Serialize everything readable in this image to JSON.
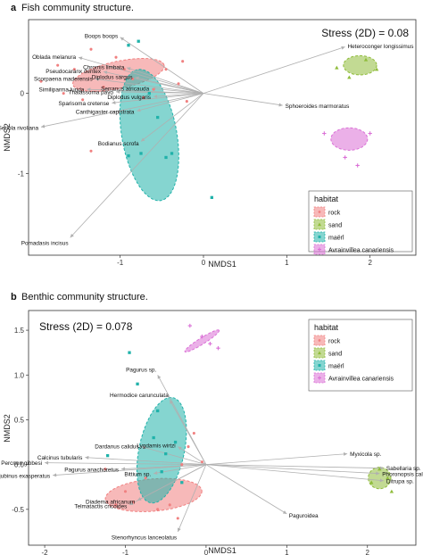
{
  "colors": {
    "rock": "#f08080",
    "sand": "#8fbc3a",
    "maerl": "#20b2aa",
    "avrainvillea": "#da70d6",
    "vector": "#b0b0b0"
  },
  "chart_data": [
    {
      "type": "scatter",
      "panel_letter": "a",
      "title": "Fish community structure.",
      "xlabel": "NMDS1",
      "ylabel": "NMDS2",
      "xlim": [
        -2.1,
        2.55
      ],
      "ylim": [
        -2.02,
        0.92
      ],
      "x_ticks": [
        -1,
        0,
        1,
        2
      ],
      "y_ticks": [
        -1,
        0
      ],
      "stress": "Stress (2D) = 0.08",
      "legend": {
        "title": "habitat",
        "position": "bottom-right",
        "entries": [
          {
            "label": "rock",
            "key": "rock",
            "marker": "circle"
          },
          {
            "label": "sand",
            "key": "sand",
            "marker": "triangle"
          },
          {
            "label": "maërl",
            "key": "maerl",
            "marker": "square"
          },
          {
            "label": "Avrainvillea canariensis",
            "key": "avrainvillea",
            "marker": "plus"
          }
        ]
      },
      "ellipses": [
        {
          "group": "rock",
          "cx": -1.02,
          "cy": 0.23,
          "rx": 0.56,
          "ry": 0.17,
          "angle": -12
        },
        {
          "group": "maerl",
          "cx": -0.65,
          "cy": -0.52,
          "rx": 0.33,
          "ry": 0.83,
          "angle": -10
        },
        {
          "group": "sand",
          "cx": 1.88,
          "cy": 0.35,
          "rx": 0.2,
          "ry": 0.12,
          "angle": 0
        },
        {
          "group": "avrainvillea",
          "cx": 1.75,
          "cy": -0.57,
          "rx": 0.22,
          "ry": 0.14,
          "angle": 0
        }
      ],
      "points": {
        "rock": [
          [
            -1.95,
            0.15
          ],
          [
            -1.75,
            0.35
          ],
          [
            -1.68,
            0.0
          ],
          [
            -1.55,
            0.3
          ],
          [
            -1.45,
            -0.08
          ],
          [
            -1.35,
            0.55
          ],
          [
            -1.2,
            0.08
          ],
          [
            -1.05,
            0.45
          ],
          [
            -0.95,
            0.3
          ],
          [
            -0.85,
            0.18
          ],
          [
            -0.72,
            -0.05
          ],
          [
            -0.6,
            0.05
          ],
          [
            -0.45,
            0.3
          ],
          [
            -0.3,
            0.12
          ],
          [
            -0.25,
            0.4
          ],
          [
            -1.35,
            -0.72
          ],
          [
            -0.2,
            -0.1
          ]
        ],
        "sand": [
          [
            1.6,
            0.32
          ],
          [
            1.75,
            0.2
          ],
          [
            1.95,
            0.42
          ],
          [
            2.08,
            0.3
          ]
        ],
        "maerl": [
          [
            -0.9,
            0.6
          ],
          [
            -0.78,
            0.65
          ],
          [
            -0.65,
            0.0
          ],
          [
            -0.75,
            -0.75
          ],
          [
            -0.9,
            -0.78
          ],
          [
            -0.45,
            -0.8
          ],
          [
            -0.38,
            -0.75
          ],
          [
            -0.55,
            -0.3
          ],
          [
            0.1,
            -1.3
          ]
        ],
        "avrainvillea": [
          [
            1.45,
            -0.5
          ],
          [
            1.7,
            -0.8
          ],
          [
            1.85,
            -0.9
          ],
          [
            2.0,
            -0.5
          ]
        ]
      },
      "vectors": [
        {
          "label": "Boops boops",
          "x": -1.0,
          "y": 0.7
        },
        {
          "label": "Oblada melanura",
          "x": -1.5,
          "y": 0.45
        },
        {
          "label": "Chromis limbata",
          "x": -0.92,
          "y": 0.32
        },
        {
          "label": "Pseudocaranx dentex",
          "x": -1.2,
          "y": 0.27
        },
        {
          "label": "Diplodus sargus",
          "x": -0.82,
          "y": 0.2
        },
        {
          "label": "Scorpaena maderensis",
          "x": -1.3,
          "y": 0.18
        },
        {
          "label": "Serranus atricauda",
          "x": -0.62,
          "y": 0.06
        },
        {
          "label": "Similiparma lurida",
          "x": -1.4,
          "y": 0.05
        },
        {
          "label": "Thalassoma pavo",
          "x": -1.05,
          "y": 0.02
        },
        {
          "label": "Diplodus vulgaris",
          "x": -0.6,
          "y": -0.04
        },
        {
          "label": "Sparisoma cretense",
          "x": -1.1,
          "y": -0.12
        },
        {
          "label": "Canthigaster capistrata",
          "x": -0.8,
          "y": -0.22
        },
        {
          "label": "Heteroconger longissimus",
          "x": 1.7,
          "y": 0.58
        },
        {
          "label": "Sphoeroides marmoratus",
          "x": 0.95,
          "y": -0.15
        },
        {
          "label": "Seriola rivoliana",
          "x": -1.95,
          "y": -0.42
        },
        {
          "label": "Bodianus scrofa",
          "x": -0.75,
          "y": -0.6
        },
        {
          "label": "Pomadasis incisus",
          "x": -1.6,
          "y": -1.8
        }
      ]
    },
    {
      "type": "scatter",
      "panel_letter": "b",
      "title": "Benthic community structure.",
      "xlabel": "NMDS1",
      "ylabel": "NMDS2",
      "xlim": [
        -2.2,
        2.6
      ],
      "ylim": [
        -0.9,
        1.72
      ],
      "x_ticks": [
        -2,
        -1,
        0,
        1,
        2
      ],
      "y_ticks": [
        -0.5,
        0.0,
        0.5,
        1.0,
        1.5
      ],
      "stress": "Stress (2D) = 0.078",
      "legend": {
        "title": "habitat",
        "position": "top-right",
        "entries": [
          {
            "label": "rock",
            "key": "rock",
            "marker": "circle"
          },
          {
            "label": "sand",
            "key": "sand",
            "marker": "triangle"
          },
          {
            "label": "maërl",
            "key": "maerl",
            "marker": "square"
          },
          {
            "label": "Avrainvillea canariensis",
            "key": "avrainvillea",
            "marker": "plus"
          }
        ]
      },
      "ellipses": [
        {
          "group": "rock",
          "cx": -0.65,
          "cy": -0.34,
          "rx": 0.6,
          "ry": 0.18,
          "angle": -5
        },
        {
          "group": "maerl",
          "cx": -0.55,
          "cy": 0.16,
          "rx": 0.28,
          "ry": 0.6,
          "angle": 12
        },
        {
          "group": "sand",
          "cx": 2.15,
          "cy": -0.15,
          "rx": 0.14,
          "ry": 0.12,
          "angle": 0
        },
        {
          "group": "avrainvillea",
          "cx": -0.05,
          "cy": 1.38,
          "rx": 0.25,
          "ry": 0.035,
          "angle": -32
        }
      ],
      "points": {
        "rock": [
          [
            -1.25,
            -0.05
          ],
          [
            -1.12,
            -0.45
          ],
          [
            -1.0,
            -0.3
          ],
          [
            -0.9,
            -0.42
          ],
          [
            -0.75,
            -0.15
          ],
          [
            -0.6,
            -0.5
          ],
          [
            -0.45,
            -0.45
          ],
          [
            -0.35,
            -0.6
          ],
          [
            -0.3,
            0.0
          ],
          [
            -0.22,
            0.2
          ],
          [
            -0.15,
            0.35
          ],
          [
            -0.05,
            0.03
          ]
        ],
        "sand": [
          [
            2.05,
            -0.2
          ],
          [
            2.15,
            -0.05
          ],
          [
            2.25,
            -0.15
          ],
          [
            2.3,
            -0.3
          ]
        ],
        "maerl": [
          [
            -0.95,
            1.25
          ],
          [
            -0.85,
            0.9
          ],
          [
            -0.6,
            0.6
          ],
          [
            -0.5,
            0.12
          ],
          [
            -0.55,
            -0.08
          ],
          [
            -0.38,
            0.25
          ],
          [
            -0.3,
            -0.2
          ],
          [
            -1.22,
            0.1
          ],
          [
            -0.65,
            0.3
          ]
        ],
        "avrainvillea": [
          [
            -0.2,
            1.55
          ],
          [
            -0.05,
            1.43
          ],
          [
            0.05,
            1.35
          ],
          [
            0.15,
            1.3
          ]
        ]
      },
      "vectors": [
        {
          "label": "Pagurus sp.",
          "x": -0.6,
          "y": 1.0
        },
        {
          "label": "Hermodice carunculata",
          "x": -0.45,
          "y": 0.72
        },
        {
          "label": "Dardanus calidus",
          "x": -0.8,
          "y": 0.2
        },
        {
          "label": "Lygdamis wirtzi",
          "x": -0.35,
          "y": 0.2
        },
        {
          "label": "Calcinus tubularis",
          "x": -1.5,
          "y": 0.08
        },
        {
          "label": "Percnon gibbesi",
          "x": -2.0,
          "y": 0.02
        },
        {
          "label": "Pagurus anachoretus",
          "x": -1.05,
          "y": -0.05
        },
        {
          "label": "Jujubinus exasperatus",
          "x": -1.9,
          "y": -0.12
        },
        {
          "label": "Bittium sp.",
          "x": -0.65,
          "y": -0.1
        },
        {
          "label": "Diadema africanum",
          "x": -0.85,
          "y": -0.4
        },
        {
          "label": "Telmatactis cricoides",
          "x": -0.95,
          "y": -0.45
        },
        {
          "label": "Stenorhyncus lanceolatus",
          "x": -0.35,
          "y": -0.75
        },
        {
          "label": "Myxicola sp.",
          "x": 1.75,
          "y": 0.12
        },
        {
          "label": "Sabellaria sp.",
          "x": 2.2,
          "y": -0.04
        },
        {
          "label": "Phoronopsis californica",
          "x": 2.15,
          "y": -0.1
        },
        {
          "label": "Ditrupa sp.",
          "x": 2.2,
          "y": -0.18
        },
        {
          "label": "Paguroidea",
          "x": 1.0,
          "y": -0.55
        }
      ]
    }
  ]
}
